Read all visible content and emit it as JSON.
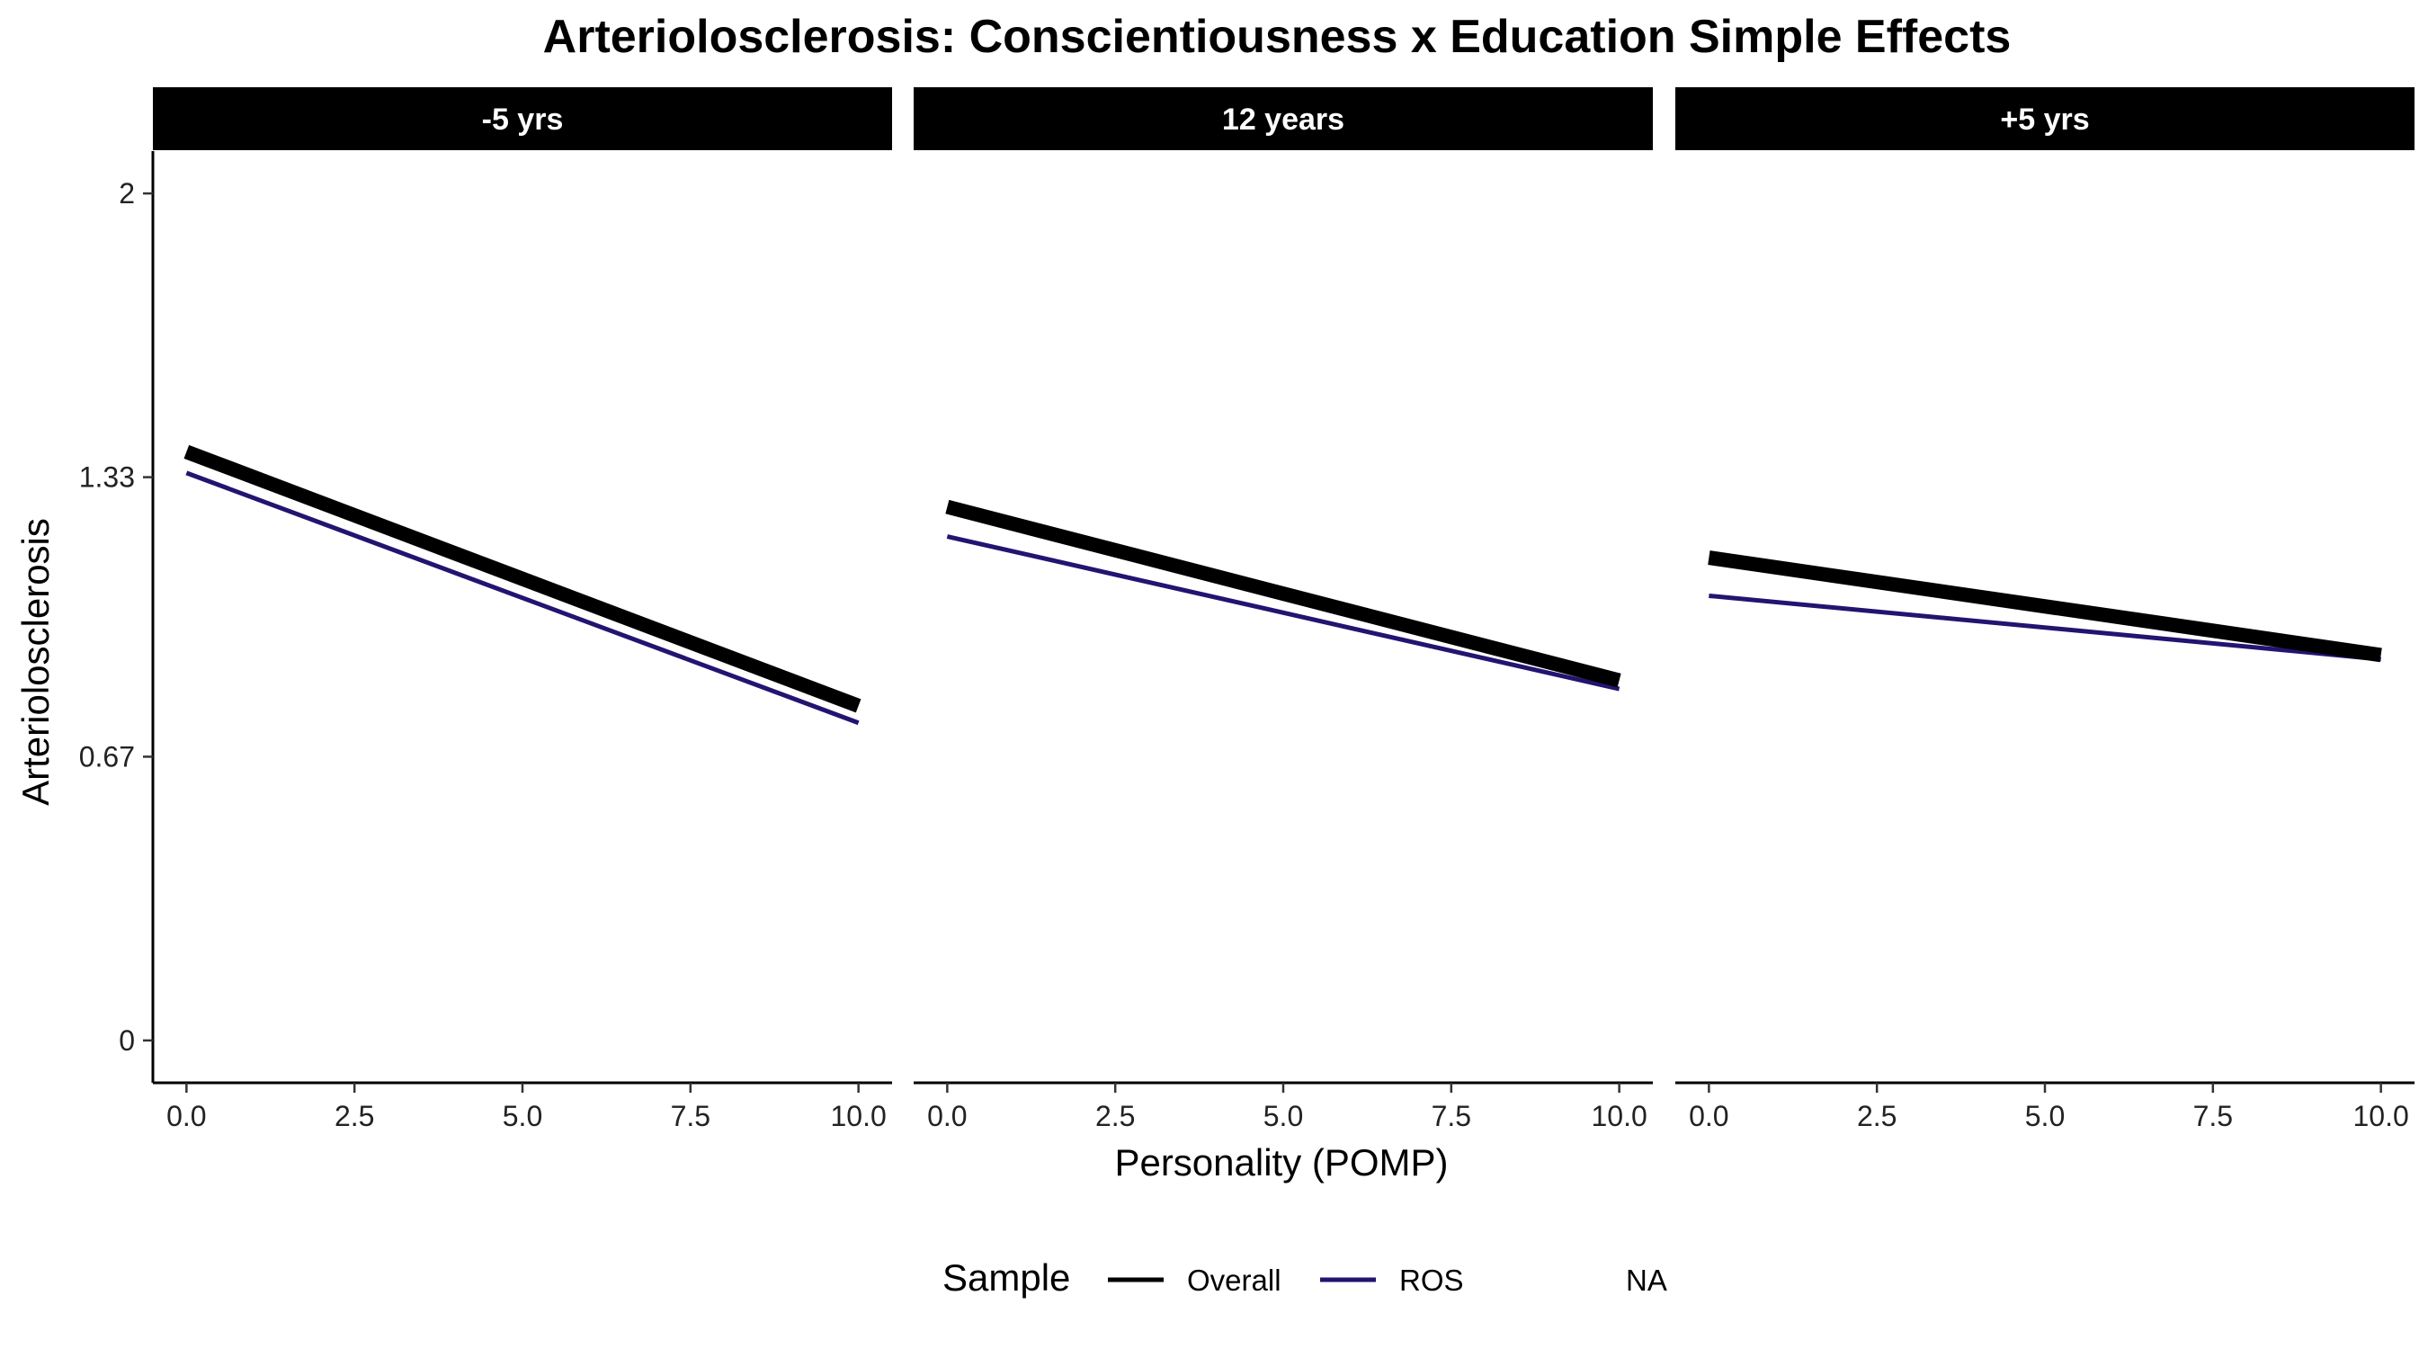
{
  "chart_data": {
    "type": "line",
    "title": "Arteriolosclerosis: Conscientiousness x Education Simple Effects",
    "xlabel": "Personality (POMP)",
    "ylabel": "Arteriolosclerosis",
    "xlim": [
      -0.5,
      10.5
    ],
    "ylim": [
      -0.1,
      2.1
    ],
    "x_ticks": [
      0,
      2.5,
      5,
      7.5,
      10
    ],
    "x_tick_labels": [
      "0.0",
      "2.5",
      "5.0",
      "7.5",
      "10.0"
    ],
    "y_ticks": [
      0,
      0.67,
      1.33,
      2
    ],
    "y_tick_labels": [
      "0",
      "0.67",
      "1.33",
      "2"
    ],
    "grid": false,
    "legend": {
      "title": "Sample",
      "position": "bottom",
      "entries": [
        {
          "label": "Overall",
          "color": "#000000"
        },
        {
          "label": "ROS",
          "color": "#221470"
        },
        {
          "label": "NA",
          "color": null
        }
      ]
    },
    "panels": [
      {
        "label": "-5 yrs",
        "series": [
          {
            "name": "Overall",
            "color": "#000000",
            "x": [
              0,
              10
            ],
            "y": [
              1.39,
              0.79
            ]
          },
          {
            "name": "ROS",
            "color": "#221470",
            "x": [
              0,
              10
            ],
            "y": [
              1.34,
              0.75
            ]
          }
        ]
      },
      {
        "label": "12 years",
        "series": [
          {
            "name": "Overall",
            "color": "#000000",
            "x": [
              0,
              10
            ],
            "y": [
              1.26,
              0.85
            ]
          },
          {
            "name": "ROS",
            "color": "#221470",
            "x": [
              0,
              10
            ],
            "y": [
              1.19,
              0.83
            ]
          }
        ]
      },
      {
        "label": "+5 yrs",
        "series": [
          {
            "name": "Overall",
            "color": "#000000",
            "x": [
              0,
              10
            ],
            "y": [
              1.14,
              0.91
            ]
          },
          {
            "name": "ROS",
            "color": "#221470",
            "x": [
              0,
              10
            ],
            "y": [
              1.05,
              0.9
            ]
          }
        ]
      }
    ]
  }
}
